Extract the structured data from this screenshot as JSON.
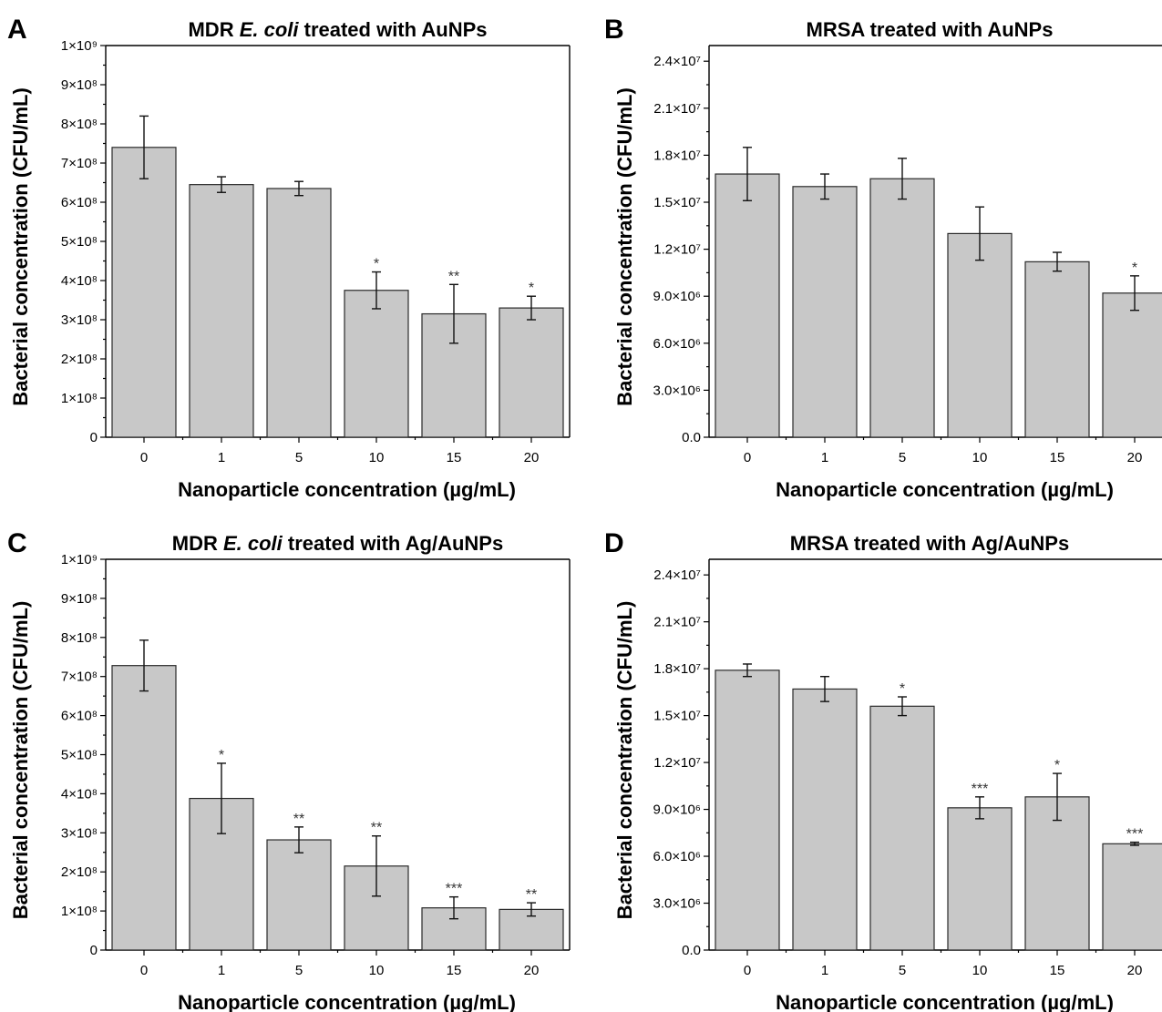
{
  "chart_data": [
    {
      "panel": "A",
      "type": "bar",
      "title_parts": [
        {
          "text": "MDR ",
          "italic": false
        },
        {
          "text": "E. coli",
          "italic": true
        },
        {
          "text": " treated with AuNPs",
          "italic": false
        }
      ],
      "xlabel": "Nanoparticle concentration (µg/mL)",
      "ylabel": "Bacterial concentration (CFU/mL)",
      "categories": [
        "0",
        "1",
        "5",
        "10",
        "15",
        "20"
      ],
      "values": [
        740000000,
        645000000,
        635000000,
        375000000,
        315000000,
        330000000
      ],
      "errors": [
        80000000,
        20000000,
        18000000,
        47000000,
        75000000,
        30000000
      ],
      "significance": [
        "",
        "",
        "",
        "*",
        "**",
        "*"
      ],
      "ylim": [
        0,
        1000000000
      ],
      "yticks": [
        {
          "value": 0,
          "label": "0"
        },
        {
          "value": 100000000,
          "label": "1×10⁸"
        },
        {
          "value": 200000000,
          "label": "2×10⁸"
        },
        {
          "value": 300000000,
          "label": "3×10⁸"
        },
        {
          "value": 400000000,
          "label": "4×10⁸"
        },
        {
          "value": 500000000,
          "label": "5×10⁸"
        },
        {
          "value": 600000000,
          "label": "6×10⁸"
        },
        {
          "value": 700000000,
          "label": "7×10⁸"
        },
        {
          "value": 800000000,
          "label": "8×10⁸"
        },
        {
          "value": 900000000,
          "label": "9×10⁸"
        },
        {
          "value": 1000000000,
          "label": "1×10⁹"
        }
      ]
    },
    {
      "panel": "B",
      "type": "bar",
      "title_parts": [
        {
          "text": "MRSA treated with AuNPs",
          "italic": false
        }
      ],
      "xlabel": "Nanoparticle concentration (µg/mL)",
      "ylabel": "Bacterial concentration (CFU/mL)",
      "categories": [
        "0",
        "1",
        "5",
        "10",
        "15",
        "20"
      ],
      "values": [
        16800000,
        16000000,
        16500000,
        13000000,
        11200000,
        9200000
      ],
      "errors": [
        1700000,
        800000,
        1300000,
        1700000,
        600000,
        1100000
      ],
      "significance": [
        "",
        "",
        "",
        "",
        "",
        "*"
      ],
      "ylim": [
        0,
        25000000
      ],
      "yticks": [
        {
          "value": 0,
          "label": "0.0"
        },
        {
          "value": 3000000,
          "label": "3.0×10⁶"
        },
        {
          "value": 6000000,
          "label": "6.0×10⁶"
        },
        {
          "value": 9000000,
          "label": "9.0×10⁶"
        },
        {
          "value": 12000000,
          "label": "1.2×10⁷"
        },
        {
          "value": 15000000,
          "label": "1.5×10⁷"
        },
        {
          "value": 18000000,
          "label": "1.8×10⁷"
        },
        {
          "value": 21000000,
          "label": "2.1×10⁷"
        },
        {
          "value": 24000000,
          "label": "2.4×10⁷"
        }
      ]
    },
    {
      "panel": "C",
      "type": "bar",
      "title_parts": [
        {
          "text": "MDR ",
          "italic": false
        },
        {
          "text": "E. coli",
          "italic": true
        },
        {
          "text": " treated with Ag/AuNPs",
          "italic": false
        }
      ],
      "xlabel": "Nanoparticle concentration (µg/mL)",
      "ylabel": "Bacterial concentration (CFU/mL)",
      "categories": [
        "0",
        "1",
        "5",
        "10",
        "15",
        "20"
      ],
      "values": [
        728000000,
        388000000,
        282000000,
        215000000,
        108000000,
        104000000
      ],
      "errors": [
        65000000,
        90000000,
        33000000,
        77000000,
        28000000,
        17000000
      ],
      "significance": [
        "",
        "*",
        "**",
        "**",
        "***",
        "**"
      ],
      "ylim": [
        0,
        1000000000
      ],
      "yticks": [
        {
          "value": 0,
          "label": "0"
        },
        {
          "value": 100000000,
          "label": "1×10⁸"
        },
        {
          "value": 200000000,
          "label": "2×10⁸"
        },
        {
          "value": 300000000,
          "label": "3×10⁸"
        },
        {
          "value": 400000000,
          "label": "4×10⁸"
        },
        {
          "value": 500000000,
          "label": "5×10⁸"
        },
        {
          "value": 600000000,
          "label": "6×10⁸"
        },
        {
          "value": 700000000,
          "label": "7×10⁸"
        },
        {
          "value": 800000000,
          "label": "8×10⁸"
        },
        {
          "value": 900000000,
          "label": "9×10⁸"
        },
        {
          "value": 1000000000,
          "label": "1×10⁹"
        }
      ]
    },
    {
      "panel": "D",
      "type": "bar",
      "title_parts": [
        {
          "text": "MRSA treated with Ag/AuNPs",
          "italic": false
        }
      ],
      "xlabel": "Nanoparticle concentration (µg/mL)",
      "ylabel": "Bacterial concentration (CFU/mL)",
      "categories": [
        "0",
        "1",
        "5",
        "10",
        "15",
        "20"
      ],
      "values": [
        17900000,
        16700000,
        15600000,
        9100000,
        9800000,
        6800000
      ],
      "errors": [
        400000,
        800000,
        600000,
        700000,
        1500000,
        100000
      ],
      "significance": [
        "",
        "",
        "*",
        "***",
        "*",
        "***"
      ],
      "ylim": [
        0,
        25000000
      ],
      "yticks": [
        {
          "value": 0,
          "label": "0.0"
        },
        {
          "value": 3000000,
          "label": "3.0×10⁶"
        },
        {
          "value": 6000000,
          "label": "6.0×10⁶"
        },
        {
          "value": 9000000,
          "label": "9.0×10⁶"
        },
        {
          "value": 12000000,
          "label": "1.2×10⁷"
        },
        {
          "value": 15000000,
          "label": "1.5×10⁷"
        },
        {
          "value": 18000000,
          "label": "1.8×10⁷"
        },
        {
          "value": 21000000,
          "label": "2.1×10⁷"
        },
        {
          "value": 24000000,
          "label": "2.4×10⁷"
        }
      ]
    }
  ]
}
